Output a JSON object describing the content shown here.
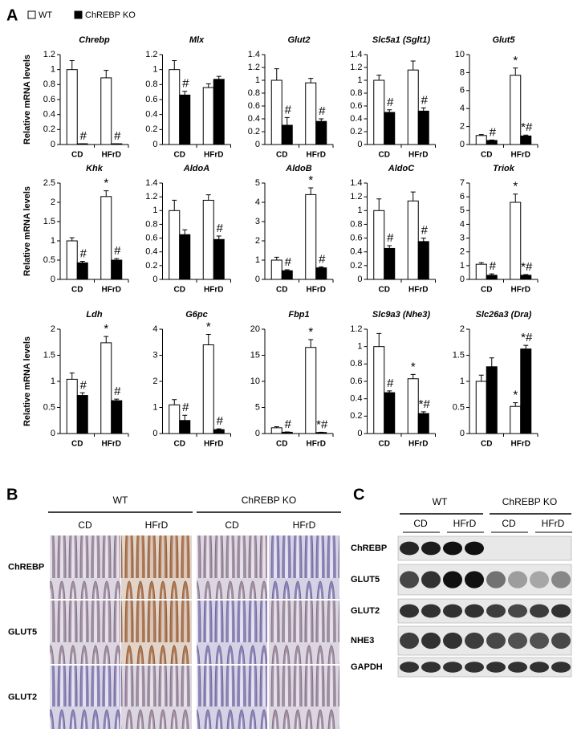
{
  "panel_a": {
    "label": "A"
  },
  "legend": [
    {
      "name": "WT",
      "color": "#ffffff"
    },
    {
      "name": "ChREBP KO",
      "color": "#000000"
    }
  ],
  "chart_data": [
    {
      "type": "bar",
      "title": "Chrebp",
      "ylabel": "Relative mRNA levels",
      "categories": [
        "CD",
        "HFrD"
      ],
      "ylim": [
        0,
        1.2
      ],
      "yticks": [
        0,
        0.2,
        0.4,
        0.6,
        0.8,
        1,
        1.2
      ],
      "series": [
        {
          "color": "#ffffff",
          "values": [
            1.0,
            0.89
          ],
          "errors": [
            0.12,
            0.1
          ],
          "annotations": [
            null,
            null
          ]
        },
        {
          "color": "#000000",
          "values": [
            0.01,
            0.01
          ],
          "errors": [
            0.0,
            0.0
          ],
          "annotations": [
            "#",
            "#"
          ]
        }
      ]
    },
    {
      "type": "bar",
      "title": "Mlx",
      "categories": [
        "CD",
        "HFrD"
      ],
      "ylim": [
        0,
        1.2
      ],
      "yticks": [
        0,
        0.2,
        0.4,
        0.6,
        0.8,
        1,
        1.2
      ],
      "series": [
        {
          "color": "#ffffff",
          "values": [
            1.0,
            0.76
          ],
          "errors": [
            0.12,
            0.05
          ],
          "annotations": [
            null,
            null
          ]
        },
        {
          "color": "#000000",
          "values": [
            0.66,
            0.87
          ],
          "errors": [
            0.05,
            0.04
          ],
          "annotations": [
            "#",
            null
          ]
        }
      ]
    },
    {
      "type": "bar",
      "title": "Glut2",
      "categories": [
        "CD",
        "HFrD"
      ],
      "ylim": [
        0,
        1.4
      ],
      "yticks": [
        0,
        0.2,
        0.4,
        0.6,
        0.8,
        1,
        1.2,
        1.4
      ],
      "series": [
        {
          "color": "#ffffff",
          "values": [
            1.0,
            0.96
          ],
          "errors": [
            0.18,
            0.07
          ],
          "annotations": [
            null,
            null
          ]
        },
        {
          "color": "#000000",
          "values": [
            0.3,
            0.36
          ],
          "errors": [
            0.12,
            0.04
          ],
          "annotations": [
            "#",
            "#"
          ]
        }
      ]
    },
    {
      "type": "bar",
      "title": "Slc5a1 (Sglt1)",
      "categories": [
        "CD",
        "HFrD"
      ],
      "ylim": [
        0,
        1.4
      ],
      "yticks": [
        0,
        0.2,
        0.4,
        0.6,
        0.8,
        1,
        1.2,
        1.4
      ],
      "series": [
        {
          "color": "#ffffff",
          "values": [
            1.0,
            1.16
          ],
          "errors": [
            0.08,
            0.14
          ],
          "annotations": [
            null,
            null
          ]
        },
        {
          "color": "#000000",
          "values": [
            0.5,
            0.52
          ],
          "errors": [
            0.04,
            0.05
          ],
          "annotations": [
            "#",
            "#"
          ]
        }
      ]
    },
    {
      "type": "bar",
      "title": "Glut5",
      "categories": [
        "CD",
        "HFrD"
      ],
      "ylim": [
        0,
        10
      ],
      "yticks": [
        0,
        2,
        4,
        6,
        8,
        10
      ],
      "series": [
        {
          "color": "#ffffff",
          "values": [
            1.0,
            7.7
          ],
          "errors": [
            0.1,
            0.8
          ],
          "annotations": [
            null,
            "*"
          ]
        },
        {
          "color": "#000000",
          "values": [
            0.45,
            0.95
          ],
          "errors": [
            0.05,
            0.1
          ],
          "annotations": [
            "#",
            "*#"
          ]
        }
      ]
    },
    {
      "type": "bar",
      "title": "Khk",
      "ylabel": "Relative mRNA levels",
      "categories": [
        "CD",
        "HFrD"
      ],
      "ylim": [
        0,
        2.5
      ],
      "yticks": [
        0,
        0.5,
        1,
        1.5,
        2,
        2.5
      ],
      "series": [
        {
          "color": "#ffffff",
          "values": [
            1.0,
            2.15
          ],
          "errors": [
            0.08,
            0.15
          ],
          "annotations": [
            null,
            "*"
          ]
        },
        {
          "color": "#000000",
          "values": [
            0.43,
            0.5
          ],
          "errors": [
            0.04,
            0.04
          ],
          "annotations": [
            "#",
            "#"
          ]
        }
      ]
    },
    {
      "type": "bar",
      "title": "AldoA",
      "categories": [
        "CD",
        "HFrD"
      ],
      "ylim": [
        0,
        1.4
      ],
      "yticks": [
        0,
        0.2,
        0.4,
        0.6,
        0.8,
        1,
        1.2,
        1.4
      ],
      "series": [
        {
          "color": "#ffffff",
          "values": [
            1.0,
            1.15
          ],
          "errors": [
            0.15,
            0.08
          ],
          "annotations": [
            null,
            null
          ]
        },
        {
          "color": "#000000",
          "values": [
            0.65,
            0.58
          ],
          "errors": [
            0.07,
            0.05
          ],
          "annotations": [
            null,
            "#"
          ]
        }
      ]
    },
    {
      "type": "bar",
      "title": "AldoB",
      "categories": [
        "CD",
        "HFrD"
      ],
      "ylim": [
        0,
        5
      ],
      "yticks": [
        0,
        1,
        2,
        3,
        4,
        5
      ],
      "series": [
        {
          "color": "#ffffff",
          "values": [
            1.0,
            4.4
          ],
          "errors": [
            0.15,
            0.35
          ],
          "annotations": [
            null,
            "*"
          ]
        },
        {
          "color": "#000000",
          "values": [
            0.45,
            0.6
          ],
          "errors": [
            0.05,
            0.05
          ],
          "annotations": [
            "#",
            "#"
          ]
        }
      ]
    },
    {
      "type": "bar",
      "title": "AldoC",
      "categories": [
        "CD",
        "HFrD"
      ],
      "ylim": [
        0,
        1.4
      ],
      "yticks": [
        0,
        0.2,
        0.4,
        0.6,
        0.8,
        1,
        1.2,
        1.4
      ],
      "series": [
        {
          "color": "#ffffff",
          "values": [
            1.0,
            1.14
          ],
          "errors": [
            0.17,
            0.13
          ],
          "annotations": [
            null,
            null
          ]
        },
        {
          "color": "#000000",
          "values": [
            0.45,
            0.55
          ],
          "errors": [
            0.04,
            0.05
          ],
          "annotations": [
            "#",
            "#"
          ]
        }
      ]
    },
    {
      "type": "bar",
      "title": "Triok",
      "categories": [
        "CD",
        "HFrD"
      ],
      "ylim": [
        0,
        7
      ],
      "yticks": [
        0,
        1,
        2,
        3,
        4,
        5,
        6,
        7
      ],
      "series": [
        {
          "color": "#ffffff",
          "values": [
            1.1,
            5.6
          ],
          "errors": [
            0.12,
            0.6
          ],
          "annotations": [
            null,
            "*"
          ]
        },
        {
          "color": "#000000",
          "values": [
            0.3,
            0.3
          ],
          "errors": [
            0.1,
            0.05
          ],
          "annotations": [
            "#",
            "*#"
          ]
        }
      ]
    },
    {
      "type": "bar",
      "title": "Ldh",
      "ylabel": "Relative mRNA levels",
      "categories": [
        "CD",
        "HFrD"
      ],
      "ylim": [
        0,
        2
      ],
      "yticks": [
        0,
        0.5,
        1,
        1.5,
        2
      ],
      "series": [
        {
          "color": "#ffffff",
          "values": [
            1.04,
            1.74
          ],
          "errors": [
            0.12,
            0.12
          ],
          "annotations": [
            null,
            "*"
          ]
        },
        {
          "color": "#000000",
          "values": [
            0.73,
            0.63
          ],
          "errors": [
            0.05,
            0.03
          ],
          "annotations": [
            "#",
            "#"
          ]
        }
      ]
    },
    {
      "type": "bar",
      "title": "G6pc",
      "categories": [
        "CD",
        "HFrD"
      ],
      "ylim": [
        0,
        4
      ],
      "yticks": [
        0,
        1,
        2,
        3,
        4
      ],
      "series": [
        {
          "color": "#ffffff",
          "values": [
            1.1,
            3.4
          ],
          "errors": [
            0.2,
            0.4
          ],
          "annotations": [
            null,
            "*"
          ]
        },
        {
          "color": "#000000",
          "values": [
            0.5,
            0.15
          ],
          "errors": [
            0.2,
            0.03
          ],
          "annotations": [
            "#",
            "#"
          ]
        }
      ]
    },
    {
      "type": "bar",
      "title": "Fbp1",
      "categories": [
        "CD",
        "HFrD"
      ],
      "ylim": [
        0,
        20
      ],
      "yticks": [
        0,
        5,
        10,
        15,
        20
      ],
      "series": [
        {
          "color": "#ffffff",
          "values": [
            1.1,
            16.5
          ],
          "errors": [
            0.2,
            1.5
          ],
          "annotations": [
            null,
            "*"
          ]
        },
        {
          "color": "#000000",
          "values": [
            0.25,
            0.2
          ],
          "errors": [
            0.05,
            0.05
          ],
          "annotations": [
            "#",
            "*#"
          ]
        }
      ]
    },
    {
      "type": "bar",
      "title": "Slc9a3 (Nhe3)",
      "categories": [
        "CD",
        "HFrD"
      ],
      "ylim": [
        0,
        1.2
      ],
      "yticks": [
        0,
        0.2,
        0.4,
        0.6,
        0.8,
        1,
        1.2
      ],
      "series": [
        {
          "color": "#ffffff",
          "values": [
            1.0,
            0.63
          ],
          "errors": [
            0.15,
            0.05
          ],
          "annotations": [
            null,
            "*"
          ]
        },
        {
          "color": "#000000",
          "values": [
            0.47,
            0.23
          ],
          "errors": [
            0.02,
            0.02
          ],
          "annotations": [
            "#",
            "*#"
          ]
        }
      ]
    },
    {
      "type": "bar",
      "title": "Slc26a3 (Dra)",
      "categories": [
        "CD",
        "HFrD"
      ],
      "ylim": [
        0,
        2
      ],
      "yticks": [
        0,
        0.5,
        1,
        1.5,
        2
      ],
      "series": [
        {
          "color": "#ffffff",
          "values": [
            1.0,
            0.52
          ],
          "errors": [
            0.12,
            0.07
          ],
          "annotations": [
            null,
            "*"
          ]
        },
        {
          "color": "#000000",
          "values": [
            1.28,
            1.62
          ],
          "errors": [
            0.17,
            0.07
          ],
          "annotations": [
            null,
            "*#"
          ]
        }
      ]
    }
  ],
  "panel_b": {
    "label": "B",
    "groups": [
      "WT",
      "ChREBP KO"
    ],
    "conditions": [
      "CD",
      "HFrD",
      "CD",
      "HFrD"
    ],
    "rows": [
      "ChREBP",
      "GLUT5",
      "GLUT2"
    ]
  },
  "panel_c": {
    "label": "C",
    "groups": [
      "WT",
      "ChREBP KO"
    ],
    "conditions": [
      "CD",
      "HFrD",
      "CD",
      "HFrD"
    ],
    "rows": [
      "ChREBP",
      "GLUT5",
      "GLUT2",
      "NHE3",
      "GAPDH"
    ]
  }
}
